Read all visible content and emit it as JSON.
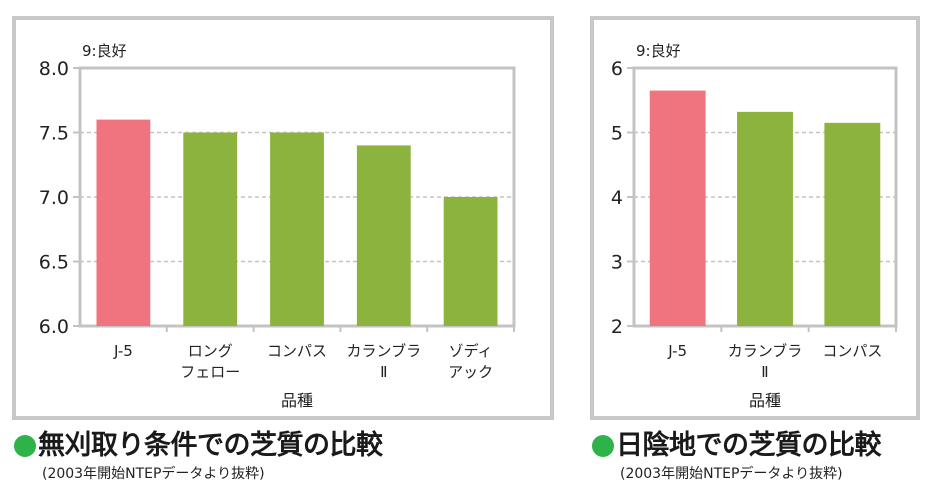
{
  "colors": {
    "highlight": "#f07480",
    "bar": "#8db33f",
    "dot": "#2db34a",
    "grid": "#c3c3c3"
  },
  "chart_data": [
    {
      "type": "bar",
      "title": "無刈取り条件での芝質の比較",
      "subtitle": "(2003年開始NTEPデータより抜粋)",
      "note": "9:良好",
      "xlabel": "品種",
      "ylabel": "",
      "ylim": [
        6.0,
        8.0
      ],
      "yticks": [
        "6.0",
        "6.5",
        "7.0",
        "7.5",
        "8.0"
      ],
      "categories": [
        [
          "J-5"
        ],
        [
          "ロング",
          "フェロー"
        ],
        [
          "コンパス"
        ],
        [
          "カランブラ",
          "Ⅱ"
        ],
        [
          "ゾディ",
          "アック"
        ]
      ],
      "values": [
        7.6,
        7.5,
        7.5,
        7.4,
        7.0
      ],
      "highlight_index": 0,
      "grid": true
    },
    {
      "type": "bar",
      "title": "日陰地での芝質の比較",
      "subtitle": "(2003年開始NTEPデータより抜粋)",
      "note": "9:良好",
      "xlabel": "品種",
      "ylabel": "",
      "ylim": [
        2,
        6
      ],
      "yticks": [
        "2",
        "3",
        "4",
        "5",
        "6"
      ],
      "categories": [
        [
          "J-5"
        ],
        [
          "カランブラ",
          "Ⅱ"
        ],
        [
          "コンパス"
        ]
      ],
      "values": [
        5.65,
        5.32,
        5.15
      ],
      "highlight_index": 0,
      "grid": true
    }
  ]
}
